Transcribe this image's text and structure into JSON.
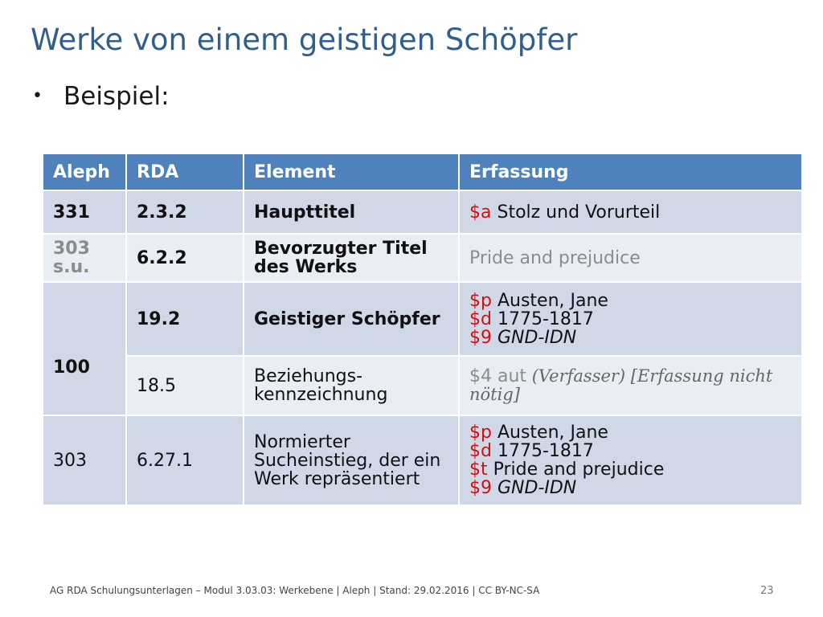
{
  "slide": {
    "title": "Werke von einem geistigen Schöpfer",
    "bullet_symbol": "•",
    "bullet_text": "Beispiel:"
  },
  "table": {
    "headers": [
      "Aleph",
      "RDA",
      "Element",
      "Erfassung"
    ],
    "rows": [
      {
        "aleph": "331",
        "rda": "2.3.2",
        "element": "Haupttitel",
        "erfassung": [
          {
            "code": "$a",
            "text": " Stolz und Vorurteil"
          }
        ]
      },
      {
        "aleph": "303 s.u.",
        "rda": "6.2.2",
        "element": "Bevorzugter Titel des Werks",
        "erfassung_plain": "Pride and prejudice"
      },
      {
        "aleph": "100",
        "rda": "19.2",
        "element": "Geistiger Schöpfer",
        "erfassung": [
          {
            "code": "$p",
            "text": " Austen, Jane"
          },
          {
            "code": "$d",
            "text": " 1775-1817"
          },
          {
            "code": "$9",
            "text": " GND-IDN"
          }
        ]
      },
      {
        "rda": "18.5",
        "element": "Beziehungs-kennzeichnung",
        "erfassung_code": "$4 aut",
        "erfassung_note": " (Verfasser) [Erfassung nicht nötig]"
      },
      {
        "aleph": "303",
        "rda": "6.27.1",
        "element": "Normierter Sucheinstieg, der ein Werk repräsentiert",
        "erfassung": [
          {
            "code": "$p",
            "text": " Austen, Jane"
          },
          {
            "code": "$d",
            "text": " 1775-1817"
          },
          {
            "code": "$t",
            "text": " Pride and prejudice"
          },
          {
            "code": "$9",
            "text": " GND-IDN"
          }
        ]
      }
    ]
  },
  "footer": {
    "text": "AG RDA Schulungsunterlagen – Modul 3.03.03: Werkebene | Aleph | Stand: 29.02.2016 | CC BY-NC-SA",
    "page_number": "23"
  },
  "colors": {
    "title": "#2f5f8f",
    "header_bg": "#4f81bd",
    "row_bg": "#d0d8e8",
    "row_alt_bg": "#e9edf4",
    "subfield_code": "#d01010"
  }
}
